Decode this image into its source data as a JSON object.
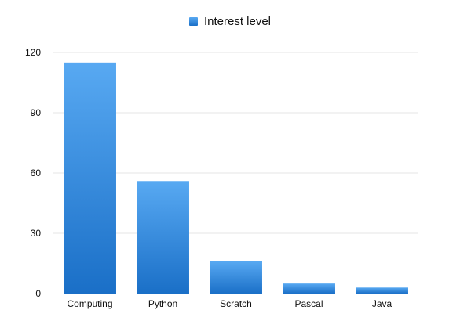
{
  "chart_data": {
    "type": "bar",
    "categories": [
      "Computing",
      "Python",
      "Scratch",
      "Pascal",
      "Java"
    ],
    "series": [
      {
        "name": "Interest level",
        "values": [
          115,
          56,
          16,
          5,
          3
        ]
      }
    ],
    "title": "",
    "xlabel": "",
    "ylabel": "",
    "ylim": [
      0,
      120
    ],
    "yticks": [
      0,
      30,
      60,
      90,
      120
    ],
    "grid": true,
    "legend_position": "top-center",
    "colors": {
      "bar_top": "#58a9f2",
      "bar_bottom": "#1a6fc7",
      "grid": "#e6e6e6",
      "axis": "#222222"
    }
  }
}
